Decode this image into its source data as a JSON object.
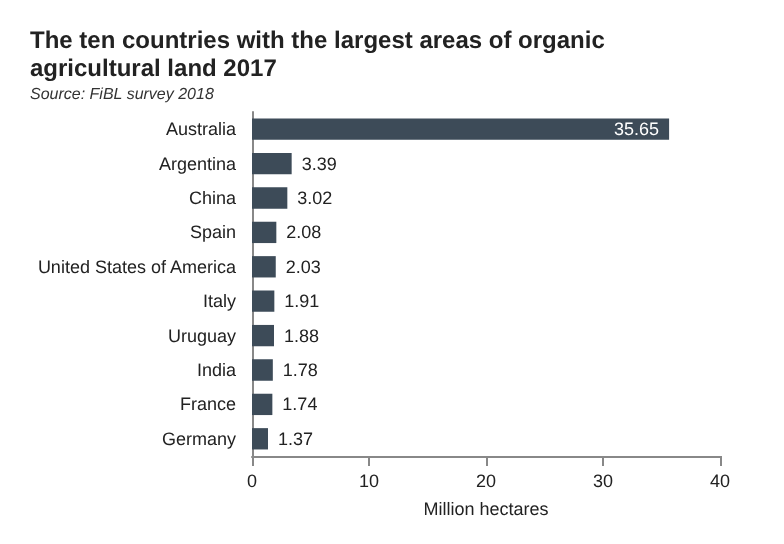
{
  "chart_data": {
    "type": "bar",
    "orientation": "horizontal",
    "title": "The ten countries with the largest areas of organic agricultural land 2017",
    "subtitle": "Source: FiBL survey 2018",
    "categories": [
      "Australia",
      "Argentina",
      "China",
      "Spain",
      "United States of America",
      "Italy",
      "Uruguay",
      "India",
      "France",
      "Germany"
    ],
    "values": [
      35.65,
      3.39,
      3.02,
      2.08,
      2.03,
      1.91,
      1.88,
      1.78,
      1.74,
      1.37
    ],
    "color": "#3d4b58",
    "data_labels": true,
    "xlabel": "Million hectares",
    "xlim": [
      0,
      40
    ],
    "xticks": [
      0,
      10,
      20,
      30,
      40
    ]
  }
}
